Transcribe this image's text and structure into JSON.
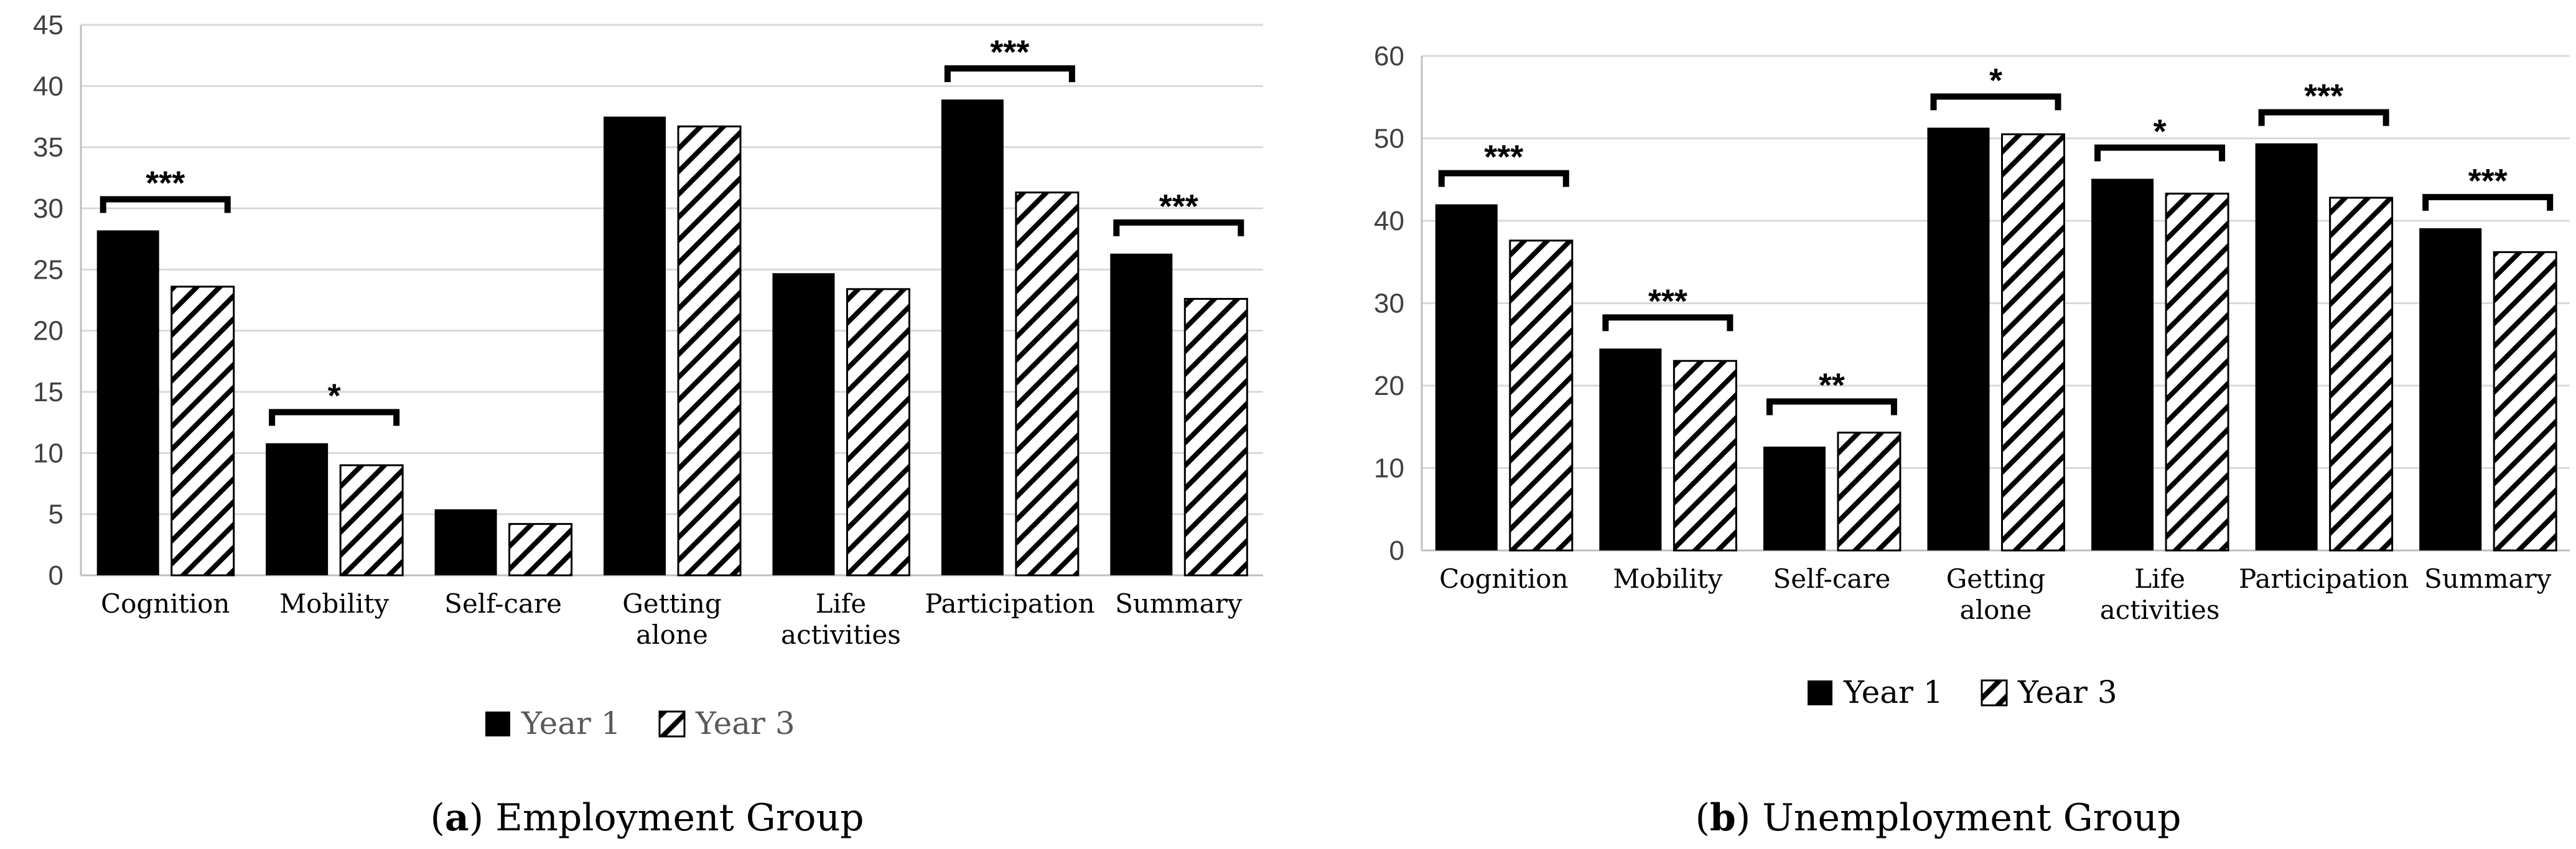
{
  "chart_data": [
    {
      "type": "bar",
      "caption_letter": "a",
      "caption_text": "Employment Group",
      "categories": [
        [
          "Cognition"
        ],
        [
          "Mobility"
        ],
        [
          "Self-care"
        ],
        [
          "Getting",
          "alone"
        ],
        [
          "Life",
          "activities"
        ],
        [
          "Participation"
        ],
        [
          "Summary"
        ]
      ],
      "series": [
        {
          "name": "Year 1",
          "pattern": "solid",
          "values": [
            28.2,
            10.8,
            5.4,
            37.5,
            24.7,
            38.9,
            26.3
          ]
        },
        {
          "name": "Year 3",
          "pattern": "hatched",
          "values": [
            23.6,
            9.0,
            4.2,
            36.7,
            23.4,
            31.3,
            22.6
          ]
        }
      ],
      "significance": [
        "***",
        "*",
        "",
        "",
        "",
        "***",
        "***"
      ],
      "ylim": [
        0,
        45
      ],
      "yticks": [
        0,
        5,
        10,
        15,
        20,
        25,
        30,
        35,
        40,
        45
      ],
      "legend_color": "#595959"
    },
    {
      "type": "bar",
      "caption_letter": "b",
      "caption_text": "Unemployment Group",
      "categories": [
        [
          "Cognition"
        ],
        [
          "Mobility"
        ],
        [
          "Self-care"
        ],
        [
          "Getting",
          "alone"
        ],
        [
          "Life",
          "activities"
        ],
        [
          "Participation"
        ],
        [
          "Summary"
        ]
      ],
      "series": [
        {
          "name": "Year 1",
          "pattern": "solid",
          "values": [
            42.0,
            24.5,
            12.6,
            51.3,
            45.1,
            49.4,
            39.1
          ]
        },
        {
          "name": "Year 3",
          "pattern": "hatched",
          "values": [
            37.6,
            23.0,
            14.3,
            50.5,
            43.3,
            42.8,
            36.2
          ]
        }
      ],
      "significance": [
        "***",
        "***",
        "**",
        "*",
        "*",
        "***",
        "***"
      ],
      "ylim": [
        0,
        60
      ],
      "yticks": [
        0,
        10,
        20,
        30,
        40,
        50,
        60
      ],
      "legend_color": "#000000"
    }
  ]
}
